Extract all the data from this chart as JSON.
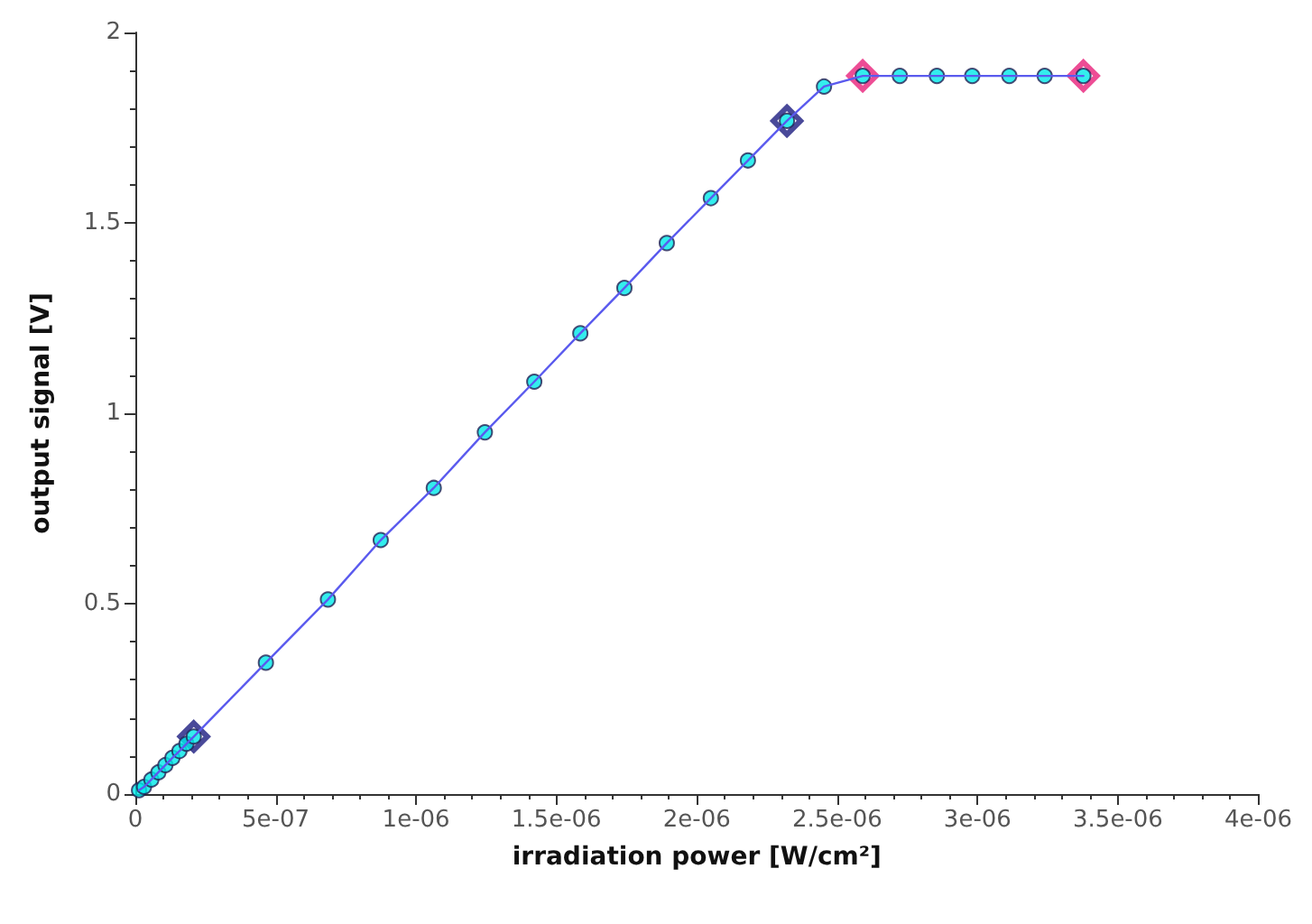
{
  "chart_data": {
    "type": "line",
    "xlabel": "irradiation power [W/cm²]",
    "ylabel": "output signal [V]",
    "xlim": [
      0,
      4e-06
    ],
    "xticks": [
      0,
      {
        "value": 5e-07,
        "label": "5e-07"
      },
      {
        "value": 1e-06,
        "label": "1e-06"
      },
      {
        "value": 1.5e-06,
        "label": "1.5e-06"
      },
      {
        "value": 2e-06,
        "label": "2e-06"
      },
      {
        "value": 2.5e-06,
        "label": "2.5e-06"
      },
      {
        "value": 3e-06,
        "label": "3e-06"
      },
      {
        "value": 3.5e-06,
        "label": "3.5e-06"
      },
      {
        "value": 4e-06,
        "label": "4e-06"
      }
    ],
    "ylim": [
      0,
      2
    ],
    "yticks": [
      0,
      0.5,
      1,
      1.5,
      2
    ],
    "grid": false,
    "series": [
      {
        "color": "#5a5aee",
        "marker": "none",
        "x": [
          1.3e-08,
          3.1e-08,
          5.7e-08,
          8.2e-08,
          1.07e-07,
          1.32e-07,
          1.57e-07,
          1.82e-07,
          2.08e-07,
          4.65e-07,
          6.86e-07,
          8.74e-07,
          1.063e-06,
          1.245e-06,
          1.421e-06,
          1.585e-06,
          1.742e-06,
          1.893e-06,
          2.05e-06,
          2.182e-06,
          2.321e-06,
          2.453e-06,
          2.591e-06,
          2.723e-06,
          2.855e-06,
          2.981e-06,
          3.113e-06,
          3.239e-06,
          3.377e-06
        ],
        "values": [
          0.01,
          0.019,
          0.038,
          0.057,
          0.076,
          0.095,
          0.113,
          0.132,
          0.151,
          0.345,
          0.511,
          0.667,
          0.804,
          0.95,
          1.083,
          1.21,
          1.329,
          1.447,
          1.565,
          1.664,
          1.768,
          1.858,
          1.886,
          1.886,
          1.886,
          1.886,
          1.886,
          1.886,
          1.886
        ]
      },
      {
        "type": "scatter",
        "color": "#00e8e8",
        "marker": "circle",
        "x": [
          1.3e-08,
          3.1e-08,
          5.7e-08,
          8.2e-08,
          1.07e-07,
          1.32e-07,
          1.57e-07,
          1.82e-07,
          2.08e-07,
          4.65e-07,
          6.86e-07,
          8.74e-07,
          1.063e-06,
          1.245e-06,
          1.421e-06,
          1.585e-06,
          1.742e-06,
          1.893e-06,
          2.05e-06,
          2.182e-06,
          2.321e-06,
          2.453e-06,
          2.591e-06,
          2.723e-06,
          2.855e-06,
          2.981e-06,
          3.113e-06,
          3.239e-06,
          3.377e-06
        ],
        "values": [
          0.01,
          0.019,
          0.038,
          0.057,
          0.076,
          0.095,
          0.113,
          0.132,
          0.151,
          0.345,
          0.511,
          0.667,
          0.804,
          0.95,
          1.083,
          1.21,
          1.329,
          1.447,
          1.565,
          1.664,
          1.768,
          1.858,
          1.886,
          1.886,
          1.886,
          1.886,
          1.886,
          1.886,
          1.886
        ]
      },
      {
        "type": "scatter",
        "color": "#1c1c80",
        "marker": "diamond",
        "x": [
          2.08e-07,
          2.321e-06
        ],
        "values": [
          0.151,
          1.768
        ]
      },
      {
        "type": "scatter",
        "color": "#e8217a",
        "marker": "diamond",
        "x": [
          2.591e-06,
          3.377e-06
        ],
        "values": [
          1.886,
          1.886
        ]
      }
    ]
  }
}
